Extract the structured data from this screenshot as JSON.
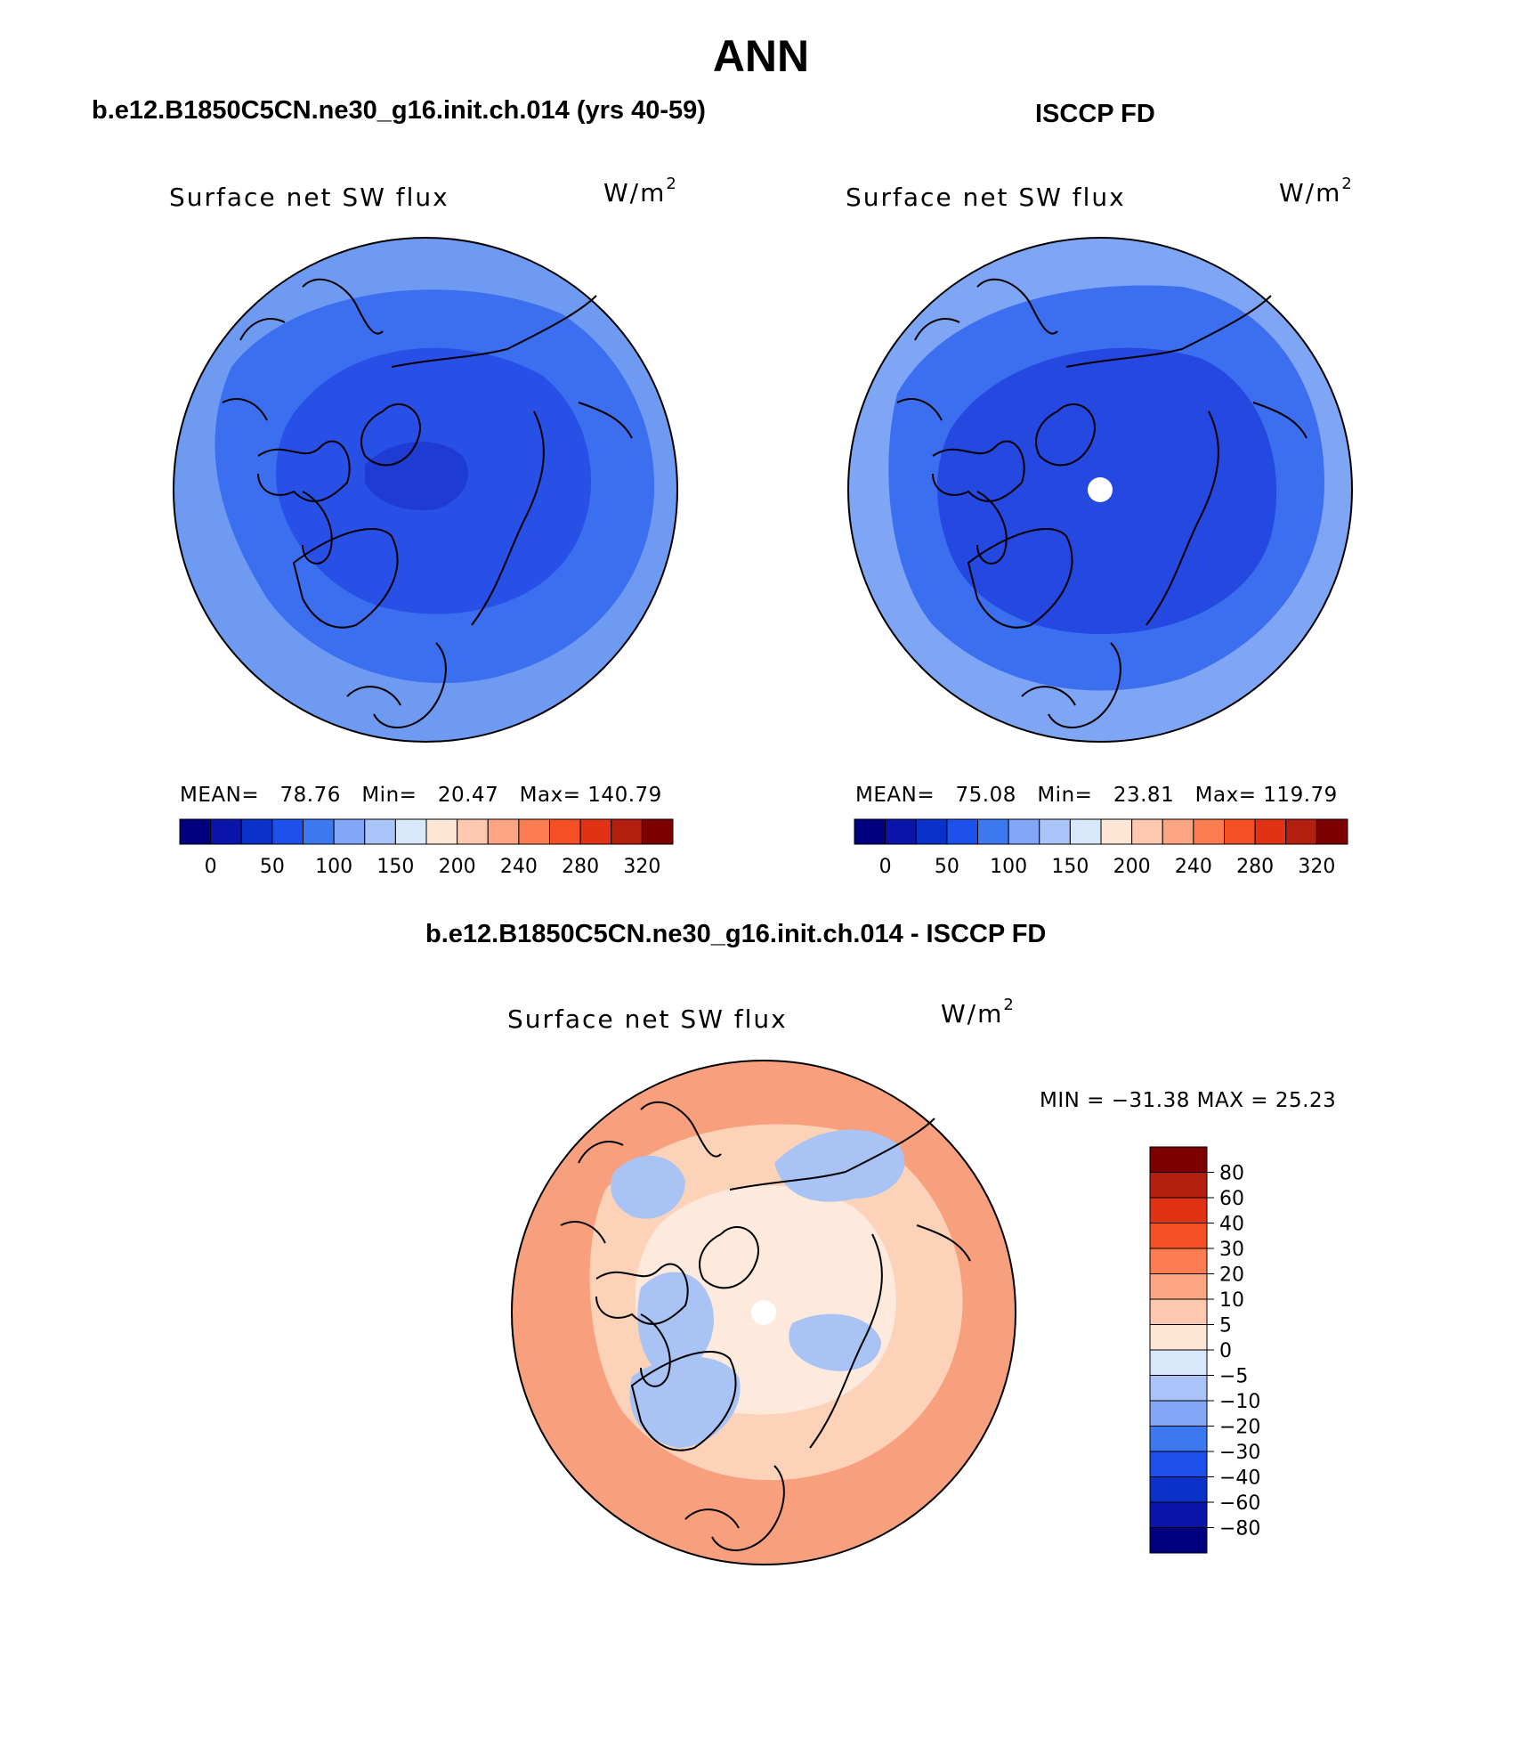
{
  "title": "ANN",
  "panels": [
    {
      "id": "model",
      "header": "b.e12.B1850C5CN.ne30_g16.init.ch.014 (yrs 40-59)",
      "variable": "Surface net SW flux",
      "units_base": "W/m",
      "units_exp": "2",
      "stats": {
        "mean_label": "MEAN=",
        "mean": "78.76",
        "min_label": "Min=",
        "min": "20.47",
        "max_label": "Max=",
        "max": "140.79"
      }
    },
    {
      "id": "obs",
      "header": "ISCCP FD",
      "variable": "Surface net SW flux",
      "units_base": "W/m",
      "units_exp": "2",
      "stats": {
        "mean_label": "MEAN=",
        "mean": "75.08",
        "min_label": "Min=",
        "min": "23.81",
        "max_label": "Max=",
        "max": "119.79"
      }
    },
    {
      "id": "diff",
      "header": "b.e12.B1850C5CN.ne30_g16.init.ch.014 - ISCCP FD",
      "variable": "Surface net SW flux",
      "units_base": "W/m",
      "units_exp": "2",
      "stats_line": "MIN = −31.38 MAX =  25.23"
    }
  ],
  "abs_colorbar": {
    "colors": [
      "#00007f",
      "#0a14a8",
      "#0a32c8",
      "#1e50eb",
      "#3c78f0",
      "#82a5f5",
      "#aac3f8",
      "#d7e8fb",
      "#fde6d4",
      "#fdc8b0",
      "#fca582",
      "#fa7c50",
      "#f55025",
      "#e13214",
      "#b4200f",
      "#7d0000"
    ],
    "labels": [
      "0",
      "50",
      "100",
      "150",
      "200",
      "240",
      "280",
      "320"
    ]
  },
  "diff_colorbar": {
    "colors": [
      "#00007f",
      "#0a14a8",
      "#0a32c8",
      "#1e50eb",
      "#3c78f0",
      "#82a5f5",
      "#aac3f8",
      "#d7e8fb",
      "#fde6d4",
      "#fdc8b0",
      "#fca582",
      "#fa7c50",
      "#f55025",
      "#e13214",
      "#b4200f",
      "#7d0000"
    ],
    "labels": [
      "80",
      "60",
      "40",
      "30",
      "20",
      "10",
      "5",
      "0",
      "−5",
      "−10",
      "−20",
      "−30",
      "−40",
      "−60",
      "−80"
    ]
  },
  "map_colors": {
    "outer_model": "#6e9af2",
    "mid_model": "#3c6ef0",
    "inner_model": "#2850e6",
    "core_model": "#1e3cd2",
    "outer_obs": "#7fa5f5",
    "mid_obs": "#3c6ef0",
    "inner_obs": "#2448e0",
    "diff_outer": "#f8a07e",
    "diff_mid": "#fcd2b8",
    "diff_inner": "#fdeadd",
    "diff_blue": "#a9c3f5",
    "coast": "#000000"
  }
}
